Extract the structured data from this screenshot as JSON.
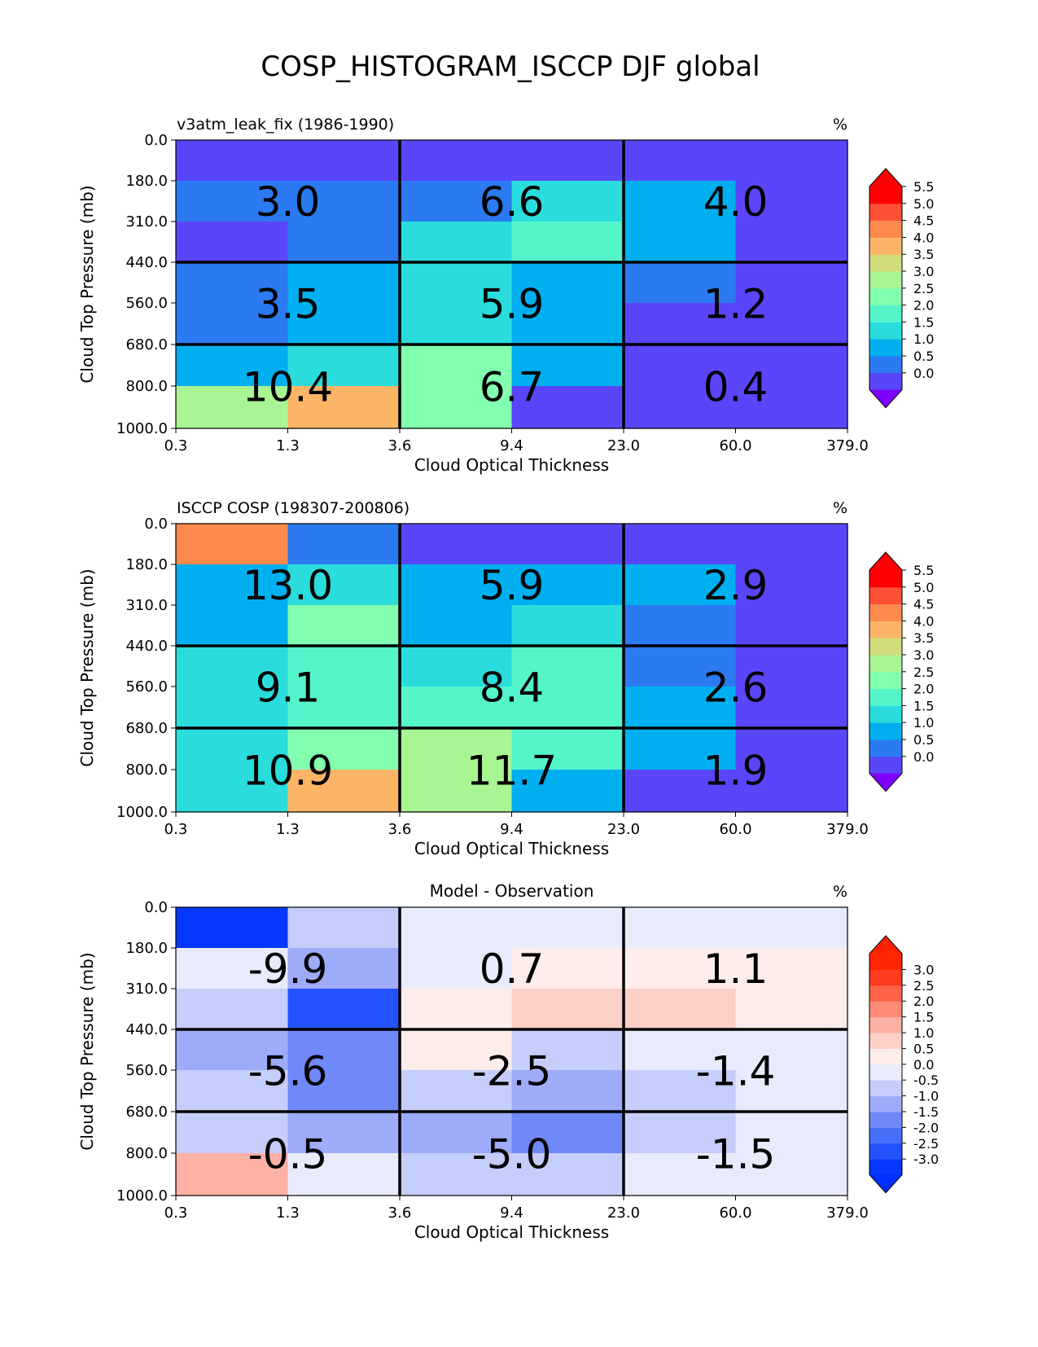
{
  "figure_title": "COSP_HISTOGRAM_ISCCP DJF global",
  "chart_data": [
    {
      "type": "heatmap",
      "title_left": "v3atm_leak_fix (1986-1990)",
      "title_center": "",
      "units": "%",
      "xlabel": "Cloud Optical Thickness",
      "ylabel": "Cloud Top Pressure (mb)",
      "x_ticks": [
        "0.3",
        "1.3",
        "3.6",
        "9.4",
        "23.0",
        "60.0",
        "379.0"
      ],
      "y_ticks": [
        "0.0",
        "180.0",
        "310.0",
        "440.0",
        "560.0",
        "680.0",
        "800.0",
        "1000.0"
      ],
      "values": [
        [
          0.3,
          0.3,
          0.3,
          0.3,
          0.3,
          0.3
        ],
        [
          0.9,
          0.9,
          0.9,
          1.9,
          1.4,
          0.3
        ],
        [
          0.3,
          0.9,
          1.9,
          2.4,
          1.4,
          0.3
        ],
        [
          0.9,
          1.4,
          1.9,
          1.4,
          0.9,
          0.3
        ],
        [
          0.9,
          1.4,
          1.9,
          1.4,
          0.3,
          0.3
        ],
        [
          1.4,
          1.9,
          2.9,
          1.4,
          0.3,
          0.3
        ],
        [
          3.4,
          4.4,
          2.9,
          0.3,
          0.3,
          0.3
        ]
      ],
      "box_totals": [
        [
          "3.0",
          "6.6",
          "4.0"
        ],
        [
          "3.5",
          "5.9",
          "1.2"
        ],
        [
          "10.4",
          "6.7",
          "0.4"
        ]
      ],
      "colorbar": {
        "ticks": [
          "0.0",
          "0.5",
          "1.0",
          "1.5",
          "2.0",
          "2.5",
          "3.0",
          "3.5",
          "4.0",
          "4.5",
          "5.0",
          "5.5"
        ],
        "colors": [
          "#5a46fa",
          "#2b7af2",
          "#00aff0",
          "#2bdcdc",
          "#55f5cc",
          "#82ffaf",
          "#a9f593",
          "#d3dd7c",
          "#fcb566",
          "#fd8a4d",
          "#fe5034",
          "#ff0000"
        ],
        "under_color": "#8000ff",
        "over_color": "#ff0000"
      }
    },
    {
      "type": "heatmap",
      "title_left": "ISCCP COSP (198307-200806)",
      "title_center": "",
      "units": "%",
      "xlabel": "Cloud Optical Thickness",
      "ylabel": "Cloud Top Pressure (mb)",
      "x_ticks": [
        "0.3",
        "1.3",
        "3.6",
        "9.4",
        "23.0",
        "60.0",
        "379.0"
      ],
      "y_ticks": [
        "0.0",
        "180.0",
        "310.0",
        "440.0",
        "560.0",
        "680.0",
        "800.0",
        "1000.0"
      ],
      "values": [
        [
          4.9,
          0.9,
          0.3,
          0.3,
          0.3,
          0.3
        ],
        [
          1.4,
          1.9,
          1.4,
          1.4,
          1.4,
          0.3
        ],
        [
          1.4,
          2.9,
          1.4,
          1.9,
          0.9,
          0.3
        ],
        [
          1.9,
          2.4,
          1.9,
          2.4,
          0.9,
          0.3
        ],
        [
          1.9,
          2.4,
          2.4,
          2.4,
          1.4,
          0.3
        ],
        [
          1.9,
          2.9,
          3.4,
          2.4,
          1.4,
          0.3
        ],
        [
          1.9,
          4.4,
          3.4,
          1.4,
          0.3,
          0.3
        ]
      ],
      "box_totals": [
        [
          "13.0",
          "5.9",
          "2.9"
        ],
        [
          "9.1",
          "8.4",
          "2.6"
        ],
        [
          "10.9",
          "11.7",
          "1.9"
        ]
      ],
      "colorbar": {
        "ticks": [
          "0.0",
          "0.5",
          "1.0",
          "1.5",
          "2.0",
          "2.5",
          "3.0",
          "3.5",
          "4.0",
          "4.5",
          "5.0",
          "5.5"
        ],
        "colors": [
          "#5a46fa",
          "#2b7af2",
          "#00aff0",
          "#2bdcdc",
          "#55f5cc",
          "#82ffaf",
          "#a9f593",
          "#d3dd7c",
          "#fcb566",
          "#fd8a4d",
          "#fe5034",
          "#ff0000"
        ],
        "under_color": "#8000ff",
        "over_color": "#ff0000"
      }
    },
    {
      "type": "heatmap",
      "title_left": "",
      "title_center": "Model - Observation",
      "units": "%",
      "xlabel": "Cloud Optical Thickness",
      "ylabel": "Cloud Top Pressure (mb)",
      "x_ticks": [
        "0.3",
        "1.3",
        "3.6",
        "9.4",
        "23.0",
        "60.0",
        "379.0"
      ],
      "y_ticks": [
        "0.0",
        "180.0",
        "310.0",
        "440.0",
        "560.0",
        "680.0",
        "800.0",
        "1000.0"
      ],
      "values": [
        [
          -3.4,
          -0.6,
          -0.1,
          -0.1,
          -0.1,
          -0.1
        ],
        [
          -0.1,
          -1.1,
          -0.1,
          0.1,
          0.1,
          0.1
        ],
        [
          -0.6,
          -2.6,
          0.1,
          0.6,
          0.6,
          0.1
        ],
        [
          -1.1,
          -1.6,
          0.1,
          -0.6,
          -0.1,
          -0.1
        ],
        [
          -0.6,
          -1.6,
          -0.6,
          -1.1,
          -0.6,
          -0.1
        ],
        [
          -0.6,
          -1.1,
          -1.1,
          -1.6,
          -0.6,
          -0.1
        ],
        [
          1.4,
          -0.1,
          -0.6,
          -0.6,
          -0.1,
          -0.1
        ]
      ],
      "box_totals": [
        [
          "-9.9",
          "0.7",
          "1.1"
        ],
        [
          "-5.6",
          "-2.5",
          "-1.4"
        ],
        [
          "-0.5",
          "-5.0",
          "-1.5"
        ]
      ],
      "colorbar": {
        "ticks": [
          "-3.0",
          "-2.5",
          "-2.0",
          "-1.5",
          "-1.0",
          "-0.5",
          "0.0",
          "0.5",
          "1.0",
          "1.5",
          "2.0",
          "2.5",
          "3.0"
        ],
        "colors": [
          "#0537ff",
          "#2452fa",
          "#476ef8",
          "#7089f8",
          "#9dabf9",
          "#c5cdfb",
          "#e8ebfc",
          "#fdedea",
          "#fdd0c7",
          "#fdb0a4",
          "#fc8a75",
          "#fd6348",
          "#fe3a1f",
          "#ff2600"
        ],
        "under_color": "#0030ff",
        "over_color": "#ff2200"
      }
    }
  ]
}
